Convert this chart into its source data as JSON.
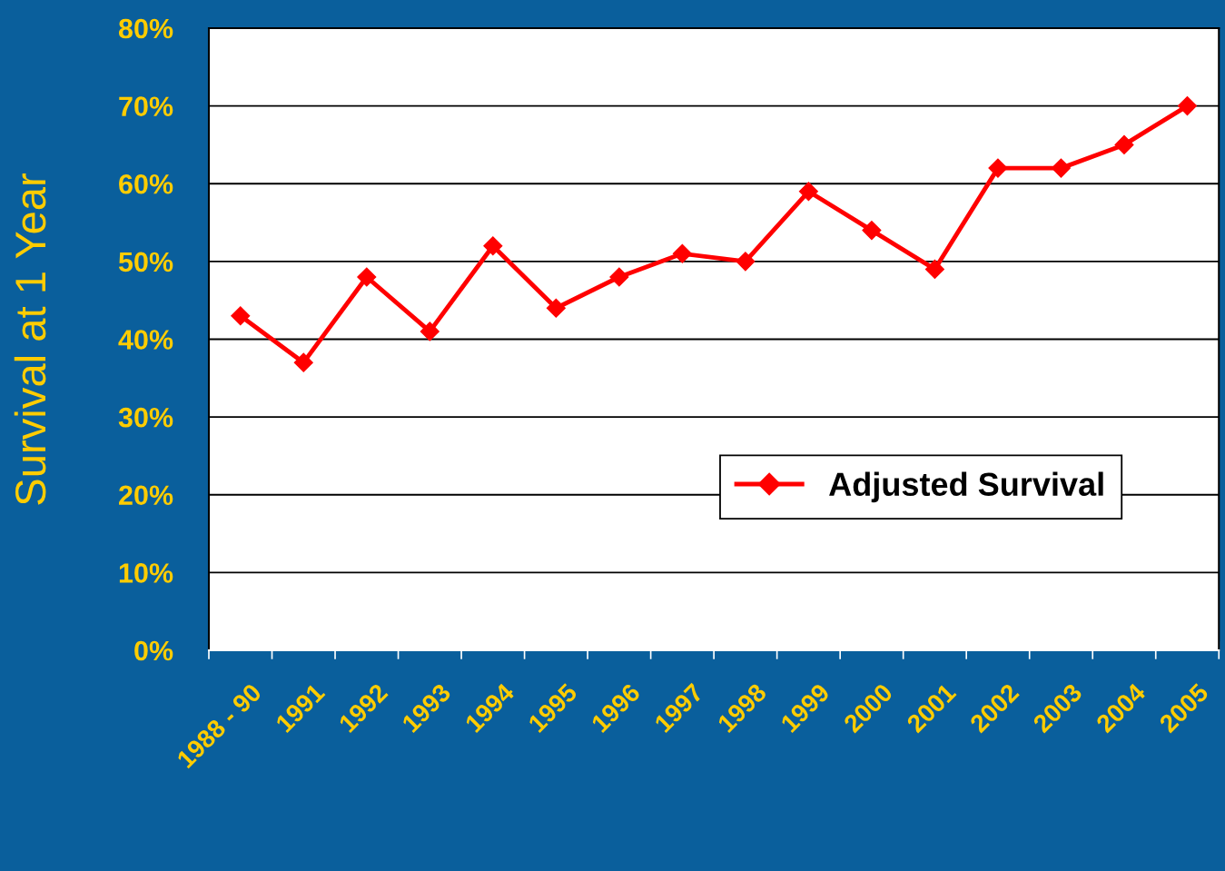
{
  "chart_data": {
    "type": "line",
    "ylabel": "Survival at 1 Year",
    "categories": [
      "1988 - 90",
      "1991",
      "1992",
      "1993",
      "1994",
      "1995",
      "1996",
      "1997",
      "1998",
      "1999",
      "2000",
      "2001",
      "2002",
      "2003",
      "2004",
      "2005"
    ],
    "series": [
      {
        "name": "Adjusted Survival",
        "color": "#ff0000",
        "values": [
          43,
          37,
          48,
          41,
          52,
          44,
          48,
          51,
          50,
          59,
          54,
          49,
          62,
          62,
          65,
          70
        ]
      }
    ],
    "ylim": [
      0,
      80
    ],
    "yticks": [
      {
        "value": 0,
        "label": "0%"
      },
      {
        "value": 10,
        "label": "10%"
      },
      {
        "value": 20,
        "label": "20%"
      },
      {
        "value": 30,
        "label": "30%"
      },
      {
        "value": 40,
        "label": "40%"
      },
      {
        "value": 50,
        "label": "50%"
      },
      {
        "value": 60,
        "label": "60%"
      },
      {
        "value": 70,
        "label": "70%"
      },
      {
        "value": 80,
        "label": "80%"
      }
    ],
    "grid": "y",
    "legend": "lower right",
    "marker": "diamond",
    "line_style": "solid"
  }
}
